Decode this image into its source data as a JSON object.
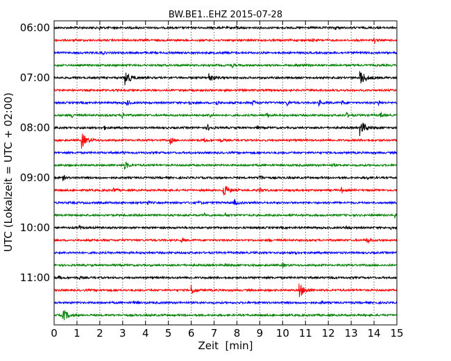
{
  "chart_data": {
    "type": "line",
    "title": "BW.BE1..EHZ 2015-07-28",
    "xlabel": "Zeit  [min]",
    "ylabel": "UTC (Lokalzeit = UTC + 02:00)",
    "xlim": [
      0,
      15
    ],
    "x_ticks": [
      "0",
      "1",
      "2",
      "3",
      "4",
      "5",
      "6",
      "7",
      "8",
      "9",
      "10",
      "11",
      "12",
      "13",
      "14",
      "15"
    ],
    "y_tick_labels": [
      "06:00",
      "07:00",
      "08:00",
      "09:00",
      "10:00",
      "11:00"
    ],
    "grid": "vertical dotted",
    "trace_interval_min": 15,
    "colors": [
      "#000000",
      "#ff0000",
      "#0000ff",
      "#008000"
    ],
    "series": [
      {
        "start": "06:00",
        "color_index": 0,
        "events": [
          [
            2.0,
            0.2
          ],
          [
            8.0,
            0.2
          ],
          [
            12.3,
            0.25
          ]
        ]
      },
      {
        "start": "06:15",
        "color_index": 1,
        "events": [
          [
            11.3,
            0.2
          ],
          [
            14.0,
            0.3
          ]
        ]
      },
      {
        "start": "06:30",
        "color_index": 2,
        "events": [
          [
            2.1,
            0.2
          ],
          [
            7.5,
            0.15
          ]
        ]
      },
      {
        "start": "06:45",
        "color_index": 3,
        "events": [
          [
            7.8,
            0.2
          ],
          [
            10.6,
            0.2
          ]
        ]
      },
      {
        "start": "07:00",
        "color_index": 0,
        "events": [
          [
            3.1,
            1.0
          ],
          [
            6.8,
            0.6
          ],
          [
            13.4,
            1.0
          ]
        ]
      },
      {
        "start": "07:15",
        "color_index": 1,
        "events": [
          [
            10.0,
            0.15
          ]
        ]
      },
      {
        "start": "07:30",
        "color_index": 2,
        "events": [
          [
            3.2,
            0.3
          ],
          [
            5.9,
            0.3
          ],
          [
            7.1,
            0.3
          ],
          [
            8.7,
            0.3
          ],
          [
            10.2,
            0.3
          ],
          [
            11.6,
            0.3
          ],
          [
            12.6,
            0.3
          ],
          [
            14.2,
            0.3
          ]
        ]
      },
      {
        "start": "07:45",
        "color_index": 3,
        "events": [
          [
            0.8,
            0.3
          ],
          [
            3.0,
            0.3
          ],
          [
            6.8,
            0.3
          ],
          [
            9.3,
            0.3
          ],
          [
            12.8,
            0.3
          ],
          [
            14.3,
            0.3
          ]
        ]
      },
      {
        "start": "08:00",
        "color_index": 0,
        "events": [
          [
            2.2,
            0.2
          ],
          [
            6.7,
            0.4
          ],
          [
            8.9,
            0.2
          ],
          [
            13.4,
            1.0
          ]
        ]
      },
      {
        "start": "08:15",
        "color_index": 1,
        "events": [
          [
            1.2,
            1.0
          ],
          [
            5.1,
            0.4
          ],
          [
            6.6,
            0.2
          ],
          [
            7.3,
            0.2
          ]
        ]
      },
      {
        "start": "08:30",
        "color_index": 2,
        "events": [
          [
            3.0,
            0.15
          ]
        ]
      },
      {
        "start": "08:45",
        "color_index": 3,
        "events": [
          [
            3.1,
            0.5
          ],
          [
            12.2,
            0.15
          ]
        ]
      },
      {
        "start": "09:00",
        "color_index": 0,
        "events": [
          [
            0.4,
            0.3
          ],
          [
            9.0,
            0.4
          ],
          [
            13.7,
            0.2
          ]
        ]
      },
      {
        "start": "09:15",
        "color_index": 1,
        "events": [
          [
            2.6,
            0.3
          ],
          [
            7.4,
            0.9
          ],
          [
            9.0,
            0.3
          ],
          [
            12.6,
            0.3
          ]
        ]
      },
      {
        "start": "09:30",
        "color_index": 2,
        "events": [
          [
            4.1,
            0.2
          ],
          [
            6.3,
            0.2
          ],
          [
            7.9,
            0.4
          ]
        ]
      },
      {
        "start": "09:45",
        "color_index": 3,
        "events": [
          [
            6.6,
            0.2
          ],
          [
            7.5,
            0.2
          ],
          [
            14.9,
            0.3
          ]
        ]
      },
      {
        "start": "10:00",
        "color_index": 0,
        "events": [
          [
            1.1,
            0.25
          ],
          [
            12.8,
            0.2
          ],
          [
            14.7,
            0.2
          ]
        ]
      },
      {
        "start": "10:15",
        "color_index": 1,
        "events": [
          [
            5.6,
            0.25
          ],
          [
            9.4,
            0.2
          ],
          [
            13.7,
            0.35
          ]
        ]
      },
      {
        "start": "10:30",
        "color_index": 2,
        "events": [
          [
            10.6,
            0.15
          ]
        ]
      },
      {
        "start": "10:45",
        "color_index": 3,
        "events": [
          [
            7.5,
            0.25
          ],
          [
            10.0,
            0.2
          ]
        ]
      },
      {
        "start": "11:00",
        "color_index": 0,
        "events": [
          [
            0.2,
            0.2
          ],
          [
            1.1,
            0.2
          ],
          [
            12.1,
            0.2
          ]
        ]
      },
      {
        "start": "11:15",
        "color_index": 1,
        "events": [
          [
            6.0,
            0.6
          ],
          [
            10.7,
            1.0
          ]
        ]
      },
      {
        "start": "11:30",
        "color_index": 2,
        "events": [
          [
            3.5,
            0.25
          ],
          [
            11.7,
            0.2
          ]
        ]
      },
      {
        "start": "11:45",
        "color_index": 3,
        "events": [
          [
            0.4,
            0.8
          ]
        ]
      }
    ]
  }
}
